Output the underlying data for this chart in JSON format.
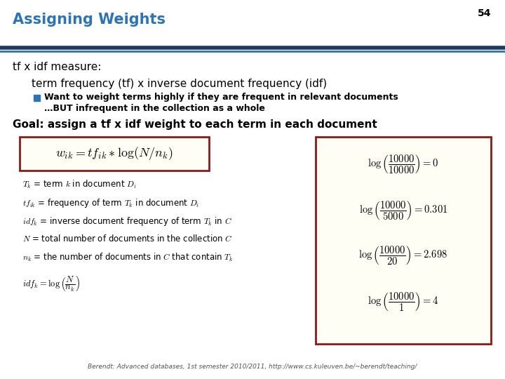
{
  "title": "Assigning Weights",
  "slide_number": "54",
  "title_color": "#2E74B5",
  "background_color": "#FFFFFF",
  "header_line_color": "#1F4E79",
  "tf_idf_label": "tf x idf measure:",
  "subheading": "term frequency (tf) x inverse document frequency (idf)",
  "bullet_color": "#2E74B5",
  "bullet_text_line1": "Want to weight terms highly if they are frequent in relevant documents",
  "bullet_text_line2": "…BUT infrequent in the collection as a whole",
  "goal_text": "Goal: assign a tf x idf weight to each term in each document",
  "formula_box_color": "#8B1A1A",
  "formula": "$w_{ik} = tf_{ik} * \\log(N / n_k)$",
  "def1": "$T_k$ = term $k$ in document $D_i$",
  "def2": "$tf_{ik}$ = frequency of term $T_k$ in document $D_i$",
  "def3": "$idf_k$ = inverse document frequency of term $T_k$ in $C$",
  "def4": "$N$ = total number of documents in the collection $C$",
  "def5": "$n_k$ = the number of documents in $C$ that contain $T_k$",
  "def6": "$idf_k = \\log\\left(\\dfrac{N}{n_k}\\right)$",
  "example_box_color": "#8B1A1A",
  "examples": [
    {
      "expr": "$\\log\\left(\\dfrac{10000}{10000}\\right) = 0$"
    },
    {
      "expr": "$\\log\\left(\\dfrac{10000}{5000}\\right) = 0.301$"
    },
    {
      "expr": "$\\log\\left(\\dfrac{10000}{20}\\right) = 2.698$"
    },
    {
      "expr": "$\\log\\left(\\dfrac{10000}{1}\\right) = 4$"
    }
  ],
  "footer": "Berendt: Advanced databases, 1st semester 2010/2011, http://www.cs.kuleuven.be/~berendt/teaching/",
  "footer_color": "#555555"
}
